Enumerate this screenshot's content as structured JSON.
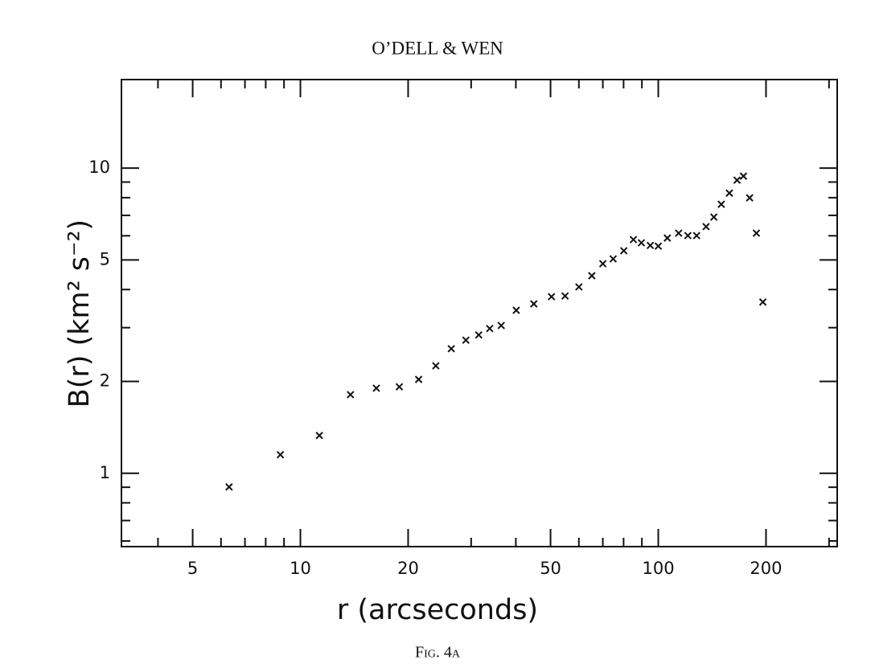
{
  "header": "O’DELL & WEN",
  "chart_data": {
    "type": "scatter",
    "xlabel": "r  (arcseconds)",
    "ylabel": "B(r)  (km² s⁻²)",
    "caption": "Fig. 4a",
    "xscale": "log",
    "yscale": "log",
    "xlim": [
      3.162,
      316.2
    ],
    "ylim": [
      0.575,
      19.5
    ],
    "xticks": [
      5,
      10,
      20,
      50,
      100,
      200
    ],
    "yticks": [
      1,
      2,
      5,
      10
    ],
    "x_minor_ticks": [
      4,
      6,
      7,
      8,
      9,
      30,
      40,
      60,
      70,
      80,
      90,
      300
    ],
    "y_minor_ticks": [
      0.6,
      0.7,
      0.8,
      0.9,
      3,
      4,
      6,
      7,
      8,
      9
    ],
    "color": "#111111",
    "x": [
      6.32,
      8.79,
      11.3,
      13.8,
      16.3,
      18.9,
      21.4,
      23.9,
      26.4,
      29.0,
      31.5,
      33.8,
      36.4,
      40.1,
      44.9,
      50.3,
      54.9,
      60.0,
      65.2,
      70.0,
      74.8,
      80.1,
      85.2,
      89.7,
      95.0,
      100,
      106,
      114,
      121,
      128,
      136,
      143,
      150,
      158,
      166,
      173,
      180,
      188,
      196
    ],
    "values": [
      0.902,
      1.15,
      1.33,
      1.81,
      1.9,
      1.92,
      2.03,
      2.25,
      2.56,
      2.73,
      2.84,
      2.98,
      3.05,
      3.42,
      3.59,
      3.79,
      3.81,
      4.08,
      4.44,
      4.86,
      5.04,
      5.36,
      5.83,
      5.69,
      5.58,
      5.55,
      5.9,
      6.12,
      6.01,
      6.01,
      6.43,
      6.91,
      7.61,
      8.28,
      9.13,
      9.41,
      7.99,
      6.12,
      3.64
    ]
  }
}
